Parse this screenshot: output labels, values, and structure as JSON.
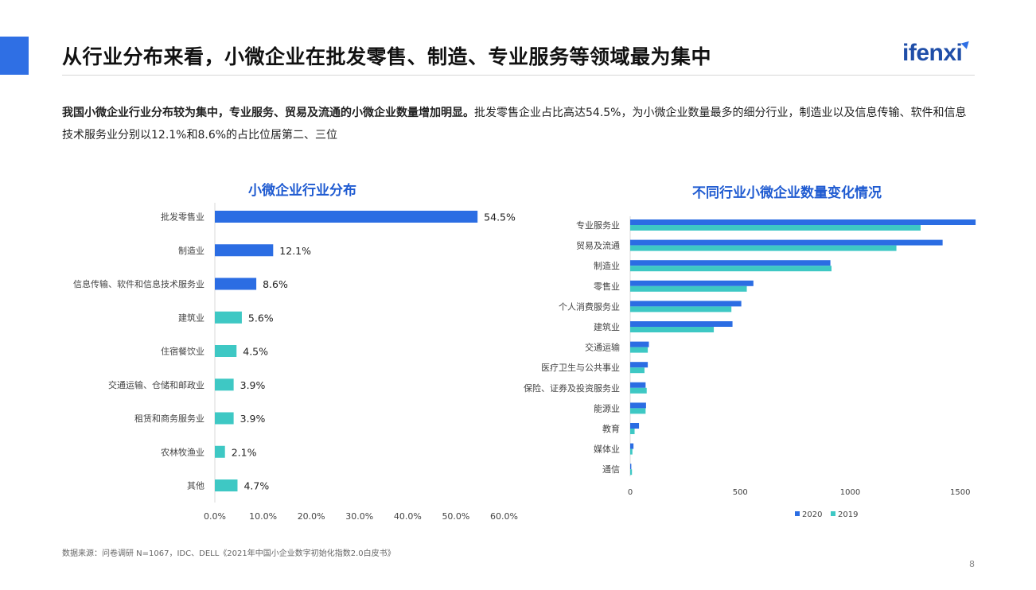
{
  "header": {
    "title": "从行业分布来看，小微企业在批发零售、制造、专业服务等领域最为集中",
    "logo": "ifenxi"
  },
  "summary": {
    "bold": "我国小微企业行业分布较为集中，专业服务、贸易及流通的小微企业数量增加明显。",
    "normal": "批发零售企业占比高达54.5%，为小微企业数量最多的细分行业，制造业以及信息传输、软件和信息技术服务业分别以12.1%和8.6%的占比位居第二、三位"
  },
  "colors": {
    "accent": "#2f6fe4",
    "teal": "#3ec8c4",
    "blue": "#2b6de3"
  },
  "chart_data": [
    {
      "type": "bar",
      "orientation": "horizontal",
      "title": "小微企业行业分布",
      "categories": [
        "批发零售业",
        "制造业",
        "信息传输、软件和信息技术服务业",
        "建筑业",
        "住宿餐饮业",
        "交通运输、仓储和邮政业",
        "租赁和商务服务业",
        "农林牧渔业",
        "其他"
      ],
      "values": [
        54.5,
        12.1,
        8.6,
        5.6,
        4.5,
        3.9,
        3.9,
        2.1,
        4.7
      ],
      "data_labels": [
        "54.5%",
        "12.1%",
        "8.6%",
        "5.6%",
        "4.5%",
        "3.9%",
        "3.9%",
        "2.1%",
        "4.7%"
      ],
      "bar_colors": [
        "#2b6de3",
        "#2b6de3",
        "#2b6de3",
        "#3ec8c4",
        "#3ec8c4",
        "#3ec8c4",
        "#3ec8c4",
        "#3ec8c4",
        "#3ec8c4"
      ],
      "xlim": [
        0,
        60
      ],
      "xticks": [
        "0.0%",
        "10.0%",
        "20.0%",
        "30.0%",
        "40.0%",
        "50.0%",
        "60.0%"
      ]
    },
    {
      "type": "bar",
      "orientation": "horizontal",
      "title": "不同行业小微企业数量变化情况",
      "categories": [
        "专业服务业",
        "贸易及流通",
        "制造业",
        "零售业",
        "个人消费服务业",
        "建筑业",
        "交通运输",
        "医疗卫生与公共事业",
        "保险、证券及投资服务业",
        "能源业",
        "教育",
        "媒体业",
        "通信"
      ],
      "series": [
        {
          "name": "2020",
          "color": "#2b6de3",
          "values": [
            1570,
            1420,
            910,
            560,
            505,
            465,
            85,
            80,
            70,
            72,
            40,
            15,
            5
          ]
        },
        {
          "name": "2019",
          "color": "#3ec8c4",
          "values": [
            1320,
            1210,
            915,
            530,
            460,
            380,
            80,
            65,
            75,
            70,
            20,
            10,
            8
          ]
        }
      ],
      "xlim": [
        0,
        1570
      ],
      "xticks": [
        "0",
        "500",
        "1000",
        "1500"
      ],
      "xtick_values": [
        0,
        500,
        1000,
        1500
      ],
      "legend_position": "bottom"
    }
  ],
  "footer": {
    "source": "数据来源：问卷调研 N=1067，IDC、DELL《2021年中国小企业数字初始化指数2.0白皮书》",
    "page": "8"
  }
}
